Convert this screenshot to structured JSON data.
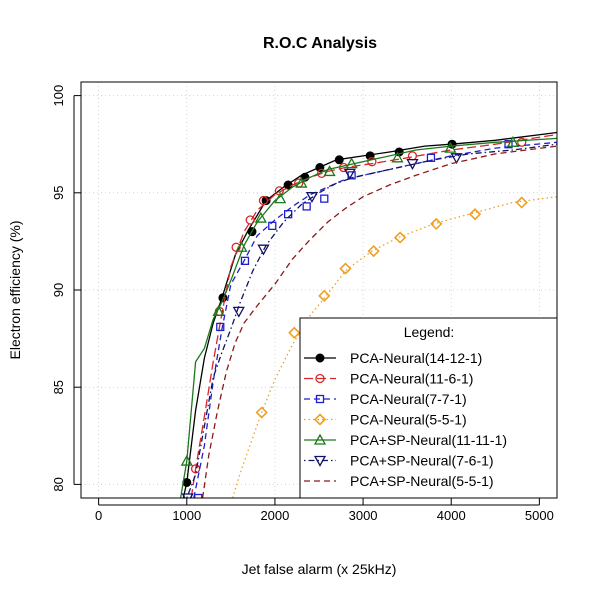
{
  "chart_data": {
    "type": "line",
    "title": "R.O.C Analysis",
    "xlabel": "Jet false alarm (x 25kHz)",
    "ylabel": "Electron efficiency (%)",
    "xlim": [
      -200,
      5200
    ],
    "ylim": [
      79.3,
      100.7
    ],
    "xticks": [
      0,
      1000,
      2000,
      3000,
      4000,
      5000
    ],
    "yticks": [
      80,
      85,
      90,
      95,
      100
    ],
    "xtick_labels": [
      "0",
      "1000",
      "2000",
      "3000",
      "4000",
      "5000"
    ],
    "ytick_labels": [
      "80",
      "85",
      "90",
      "95",
      "100"
    ],
    "grid": true,
    "legend_title": "Legend:",
    "legend_position": "bottom-right",
    "series": [
      {
        "name": "PCA-Neural(14-12-1)",
        "color": "#000000",
        "dash": "solid",
        "marker": "filled-circle",
        "x": [
          960,
          1000,
          1100,
          1200,
          1300,
          1400,
          1550,
          1700,
          1900,
          2100,
          2300,
          2500,
          2700,
          3000,
          3300,
          3700,
          4000,
          4500,
          5200
        ],
        "y": [
          79.3,
          80.1,
          83.8,
          86.5,
          88.3,
          89.6,
          91.8,
          93.1,
          94.6,
          95.3,
          95.9,
          96.3,
          96.7,
          96.9,
          97.1,
          97.4,
          97.5,
          97.7,
          98.1
        ],
        "marker_x": [
          1000,
          1410,
          1740,
          1900,
          2150,
          2340,
          2510,
          2730,
          3080,
          3410,
          4010
        ],
        "marker_y": [
          80.1,
          89.6,
          93.0,
          94.6,
          95.4,
          95.8,
          96.3,
          96.7,
          96.9,
          97.1,
          97.5
        ]
      },
      {
        "name": "PCA-Neural(11-6-1)",
        "color": "#d62728",
        "dash": "longdash",
        "marker": "open-circle",
        "x": [
          1050,
          1100,
          1200,
          1300,
          1400,
          1500,
          1650,
          1800,
          2000,
          2200,
          2400,
          2600,
          2800,
          3100,
          3500,
          4000,
          4500,
          5200
        ],
        "y": [
          79.3,
          80.8,
          83.5,
          86.3,
          88.8,
          91.2,
          93.0,
          94.1,
          94.9,
          95.4,
          95.8,
          96.1,
          96.3,
          96.5,
          96.8,
          97.2,
          97.5,
          98.0
        ],
        "marker_x": [
          1100,
          1370,
          1560,
          1720,
          1870,
          2050,
          2270,
          2530,
          2780,
          3100,
          3560,
          4800
        ],
        "marker_y": [
          80.8,
          88.9,
          92.2,
          93.6,
          94.6,
          95.1,
          95.5,
          96.0,
          96.3,
          96.6,
          96.9,
          97.6
        ]
      },
      {
        "name": "PCA-Neural(7-7-1)",
        "color": "#1f1fd0",
        "dash": "dash",
        "marker": "open-square",
        "x": [
          1080,
          1200,
          1300,
          1400,
          1500,
          1650,
          1800,
          2000,
          2200,
          2400,
          2600,
          2800,
          3000,
          3300,
          3600,
          4000,
          4500,
          5200
        ],
        "y": [
          79.3,
          82.0,
          85.3,
          88.0,
          90.3,
          91.5,
          92.8,
          93.6,
          94.3,
          94.9,
          95.3,
          95.7,
          95.9,
          96.2,
          96.5,
          96.9,
          97.3,
          97.6
        ],
        "marker_x": [
          1130,
          1380,
          1660,
          1970,
          2150,
          2360,
          2560,
          2870,
          3770,
          4650
        ],
        "marker_y": [
          79.3,
          88.1,
          91.5,
          93.3,
          93.9,
          94.3,
          94.7,
          95.9,
          96.8,
          97.5
        ]
      },
      {
        "name": "PCA-Neural(5-5-1)",
        "color": "#f0a020",
        "dash": "dotted",
        "marker": "open-diamond",
        "x": [
          1520,
          1600,
          1700,
          1850,
          2000,
          2200,
          2400,
          2600,
          2800,
          3100,
          3400,
          3800,
          4200,
          4700,
          5200
        ],
        "y": [
          79.3,
          80.5,
          81.8,
          83.7,
          85.4,
          87.2,
          88.7,
          89.8,
          91.0,
          92.0,
          92.7,
          93.4,
          93.9,
          94.5,
          94.8
        ],
        "marker_x": [
          1850,
          2220,
          2560,
          2800,
          3120,
          3420,
          3830,
          4270,
          4800
        ],
        "marker_y": [
          83.7,
          87.8,
          89.7,
          91.1,
          92.0,
          92.7,
          93.4,
          93.9,
          94.5
        ]
      },
      {
        "name": "PCA+SP-Neural(11-11-1)",
        "color": "#1a7a1a",
        "dash": "solid",
        "marker": "open-triangle-up",
        "x": [
          930,
          1000,
          1100,
          1200,
          1300,
          1400,
          1500,
          1650,
          1800,
          2000,
          2200,
          2400,
          2600,
          2900,
          3200,
          3600,
          4000,
          4500,
          5200
        ],
        "y": [
          79.3,
          81.2,
          86.3,
          87.0,
          88.5,
          89.4,
          90.5,
          92.3,
          93.5,
          94.6,
          95.3,
          95.8,
          96.2,
          96.5,
          96.8,
          97.2,
          97.4,
          97.6,
          97.8
        ],
        "marker_x": [
          1000,
          1360,
          1620,
          1840,
          2060,
          2300,
          2620,
          2870,
          3390,
          3990,
          4700
        ],
        "marker_y": [
          81.2,
          88.9,
          92.2,
          93.7,
          94.7,
          95.5,
          96.1,
          96.5,
          96.8,
          97.3,
          97.6
        ]
      },
      {
        "name": "PCA+SP-Neural(7-6-1)",
        "color": "#121266",
        "dash": "dotdash",
        "marker": "open-triangle-down",
        "x": [
          1000,
          1100,
          1200,
          1300,
          1400,
          1500,
          1600,
          1750,
          1900,
          2100,
          2300,
          2500,
          2700,
          2900,
          3200,
          3500,
          3800,
          4200,
          4700,
          5200
        ],
        "y": [
          79.3,
          80.5,
          83.0,
          85.5,
          86.8,
          88.0,
          89.3,
          91.0,
          92.3,
          93.5,
          94.4,
          95.0,
          95.5,
          95.8,
          96.1,
          96.4,
          96.7,
          97.0,
          97.2,
          97.5
        ],
        "marker_x": [
          1010,
          1590,
          1870,
          2420,
          2850,
          3560,
          4060
        ],
        "marker_y": [
          79.3,
          88.9,
          92.1,
          94.8,
          96.0,
          96.5,
          96.8
        ]
      },
      {
        "name": "PCA+SP-Neural(5-5-1)",
        "color": "#8b1a1a",
        "dash": "dash",
        "marker": "none",
        "x": [
          1180,
          1250,
          1350,
          1450,
          1550,
          1650,
          1800,
          2000,
          2200,
          2400,
          2600,
          2800,
          3000,
          3300,
          3600,
          4000,
          4500,
          5200
        ],
        "y": [
          79.3,
          81.5,
          83.8,
          85.8,
          87.3,
          88.3,
          89.2,
          90.3,
          91.6,
          92.6,
          93.5,
          94.2,
          94.8,
          95.4,
          95.9,
          96.5,
          97.0,
          97.4
        ]
      }
    ]
  }
}
